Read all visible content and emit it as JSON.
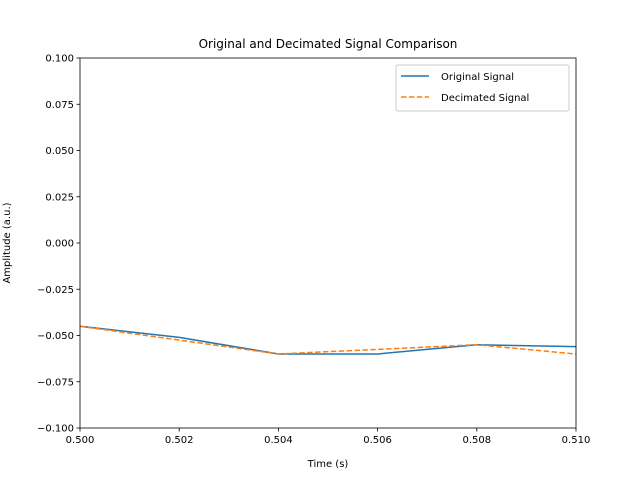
{
  "chart_data": {
    "type": "line",
    "title": "Original and Decimated Signal Comparison",
    "xlabel": "Time (s)",
    "ylabel": "Amplitude (a.u.)",
    "xlim": [
      0.5,
      0.51
    ],
    "ylim": [
      -0.1,
      0.1
    ],
    "xticks": [
      "0.500",
      "0.502",
      "0.504",
      "0.506",
      "0.508",
      "0.510"
    ],
    "yticks": [
      "0.100",
      "0.075",
      "0.050",
      "0.025",
      "0.000",
      "−0.025",
      "−0.050",
      "−0.075",
      "−0.100"
    ],
    "grid": false,
    "legend_position": "top-right",
    "series": [
      {
        "name": "Original Signal",
        "color": "#1f77b4",
        "style": "solid",
        "x": [
          0.5,
          0.502,
          0.504,
          0.506,
          0.508,
          0.51
        ],
        "y": [
          -0.045,
          -0.051,
          -0.06,
          -0.06,
          -0.055,
          -0.056
        ]
      },
      {
        "name": "Decimated Signal",
        "color": "#ff7f0e",
        "style": "dashed",
        "x": [
          0.5,
          0.504,
          0.508,
          0.512
        ],
        "y": [
          -0.045,
          -0.06,
          -0.055,
          -0.065
        ]
      }
    ]
  }
}
